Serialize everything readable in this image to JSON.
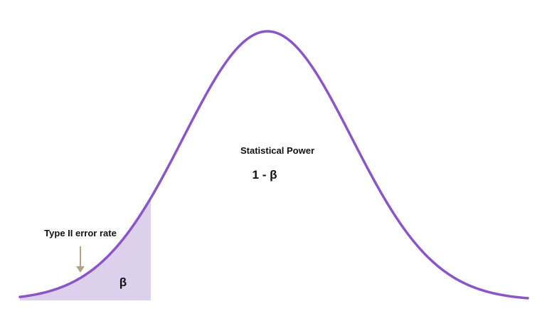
{
  "diagram": {
    "labels": {
      "power_title": "Statistical Power",
      "power_formula": "1 - β",
      "beta_symbol": "β",
      "type2_label": "Type II error rate"
    },
    "colors": {
      "curve": "#8a55c9",
      "shaded_region": "#ddd0ec",
      "baseline": "#5e5224",
      "arrow": "#b5a286",
      "text": "#111111"
    }
  }
}
